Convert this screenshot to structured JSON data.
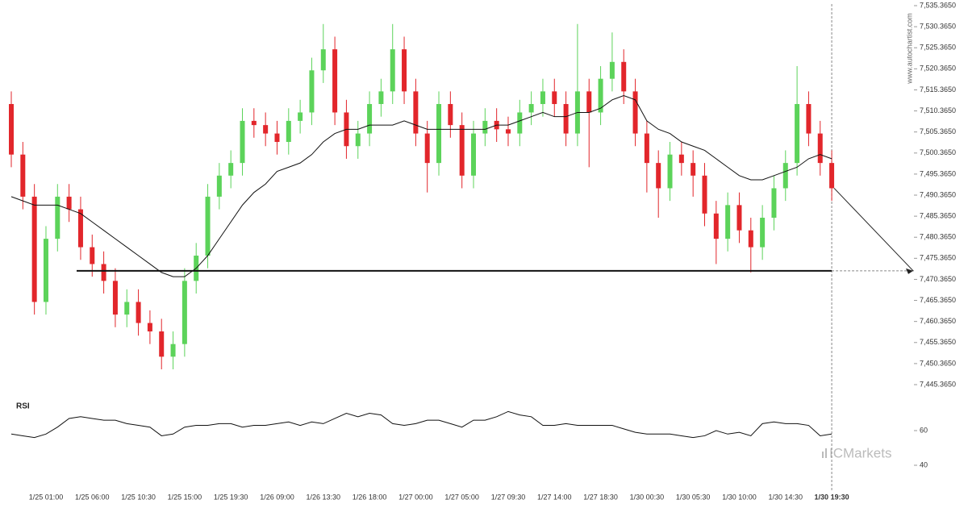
{
  "chart_data": {
    "type": "candlestick",
    "watermark": "www.autochartist.com",
    "logo": "ICMarkets",
    "up_color": "#5cd35a",
    "down_color": "#e2262b",
    "categories": [
      null,
      null,
      null,
      "1/25 01:00",
      null,
      null,
      null,
      "1/25 06:00",
      null,
      null,
      null,
      "1/25 10:30",
      null,
      null,
      null,
      "1/25 15:00",
      null,
      null,
      null,
      "1/25 19:30",
      null,
      null,
      null,
      "1/26 09:00",
      null,
      null,
      null,
      "1/26 13:30",
      null,
      null,
      null,
      "1/26 18:00",
      null,
      null,
      null,
      "1/27 00:00",
      null,
      null,
      null,
      "1/27 05:00",
      null,
      null,
      null,
      "1/27 09:30",
      null,
      null,
      null,
      "1/27 14:00",
      null,
      null,
      null,
      "1/27 18:30",
      null,
      null,
      null,
      "1/30 00:30",
      null,
      null,
      null,
      "1/30 05:30",
      null,
      null,
      null,
      "1/30 10:00",
      null,
      null,
      null,
      "1/30 14:30",
      null,
      null,
      null,
      "1/30 19:30"
    ],
    "open": [
      7512,
      7500,
      7490,
      7465,
      7480,
      7490,
      7487,
      7478,
      7474,
      7470,
      7462,
      7465,
      7460,
      7458,
      7452,
      7455,
      7470,
      7476,
      7490,
      7495,
      7498,
      7508,
      7507,
      7505,
      7503,
      7508,
      7510,
      7520,
      7525,
      7510,
      7502,
      7505,
      7512,
      7515,
      7525,
      7515,
      7505,
      7498,
      7512,
      7507,
      7495,
      7505,
      7508,
      7506,
      7505,
      7510,
      7512,
      7515,
      7512,
      7505,
      7515,
      7510,
      7518,
      7522,
      7515,
      7505,
      7498,
      7492,
      7500,
      7498,
      7495,
      7486,
      7480,
      7488,
      7482,
      7478,
      7485,
      7492,
      7498,
      7512,
      7505,
      7498
    ],
    "high": [
      7515,
      7503,
      7493,
      7483,
      7493,
      7493,
      7490,
      7481,
      7477,
      7473,
      7468,
      7468,
      7463,
      7461,
      7458,
      7473,
      7479,
      7493,
      7498,
      7501,
      7511,
      7511,
      7510,
      7508,
      7511,
      7513,
      7523,
      7531,
      7528,
      7513,
      7508,
      7515,
      7518,
      7531,
      7528,
      7518,
      7508,
      7515,
      7515,
      7510,
      7508,
      7511,
      7511,
      7509,
      7513,
      7515,
      7518,
      7518,
      7515,
      7531,
      7518,
      7521,
      7529,
      7525,
      7518,
      7508,
      7501,
      7503,
      7503,
      7501,
      7498,
      7489,
      7491,
      7491,
      7485,
      7488,
      7495,
      7501,
      7521,
      7515,
      7508,
      7501
    ],
    "low": [
      7497,
      7487,
      7462,
      7462,
      7477,
      7484,
      7475,
      7471,
      7467,
      7459,
      7459,
      7457,
      7455,
      7449,
      7449,
      7452,
      7467,
      7473,
      7487,
      7492,
      7495,
      7504,
      7502,
      7500,
      7500,
      7505,
      7507,
      7517,
      7507,
      7499,
      7499,
      7502,
      7509,
      7512,
      7512,
      7502,
      7491,
      7495,
      7504,
      7492,
      7492,
      7502,
      7503,
      7502,
      7502,
      7507,
      7509,
      7509,
      7502,
      7502,
      7497,
      7507,
      7515,
      7512,
      7502,
      7491,
      7485,
      7489,
      7495,
      7490,
      7483,
      7474,
      7477,
      7479,
      7472,
      7475,
      7482,
      7489,
      7495,
      7502,
      7495,
      7489
    ],
    "close": [
      7500,
      7490,
      7465,
      7480,
      7490,
      7487,
      7478,
      7474,
      7470,
      7462,
      7465,
      7460,
      7458,
      7452,
      7455,
      7470,
      7476,
      7490,
      7495,
      7498,
      7508,
      7507,
      7505,
      7503,
      7508,
      7510,
      7520,
      7525,
      7510,
      7502,
      7505,
      7512,
      7515,
      7525,
      7515,
      7505,
      7498,
      7512,
      7507,
      7495,
      7505,
      7508,
      7506,
      7505,
      7510,
      7512,
      7515,
      7512,
      7505,
      7515,
      7510,
      7518,
      7522,
      7515,
      7505,
      7498,
      7492,
      7500,
      7498,
      7495,
      7486,
      7480,
      7488,
      7482,
      7478,
      7485,
      7492,
      7498,
      7512,
      7505,
      7498,
      7492
    ],
    "ma": [
      7490,
      7489,
      7488,
      7488,
      7488,
      7487,
      7486,
      7484,
      7482,
      7480,
      7478,
      7476,
      7474,
      7472,
      7471,
      7471,
      7473,
      7476,
      7480,
      7484,
      7488,
      7491,
      7493,
      7496,
      7497,
      7498,
      7500,
      7503,
      7505,
      7506,
      7506,
      7507,
      7507,
      7507,
      7508,
      7507,
      7506,
      7506,
      7506,
      7506,
      7506,
      7506,
      7507,
      7507,
      7508,
      7509,
      7510,
      7509,
      7509,
      7510,
      7510,
      7511,
      7513,
      7514,
      7513,
      7508,
      7506,
      7505,
      7503,
      7502,
      7501,
      7499,
      7497,
      7495,
      7494,
      7494,
      7495,
      7496,
      7497,
      7499,
      7500,
      7499
    ],
    "support": 7472.4,
    "ylim": [
      7443.365,
      7536.365
    ],
    "yticks": [
      {
        "value": 7445.365,
        "label": "7,445.3650"
      },
      {
        "value": 7450.365,
        "label": "7,450.3650"
      },
      {
        "value": 7455.365,
        "label": "7,455.3650"
      },
      {
        "value": 7460.365,
        "label": "7,460.3650"
      },
      {
        "value": 7465.365,
        "label": "7,465.3650"
      },
      {
        "value": 7470.365,
        "label": "7,470.3650"
      },
      {
        "value": 7475.365,
        "label": "7,475.3650"
      },
      {
        "value": 7480.365,
        "label": "7,480.3650"
      },
      {
        "value": 7485.365,
        "label": "7,485.3650"
      },
      {
        "value": 7490.365,
        "label": "7,490.3650"
      },
      {
        "value": 7495.365,
        "label": "7,495.3650"
      },
      {
        "value": 7500.365,
        "label": "7,500.3650"
      },
      {
        "value": 7505.365,
        "label": "7,505.3650"
      },
      {
        "value": 7510.365,
        "label": "7,510.3650"
      },
      {
        "value": 7515.365,
        "label": "7,515.3650"
      },
      {
        "value": 7520.365,
        "label": "7,520.3650"
      },
      {
        "value": 7525.365,
        "label": "7,525.3650"
      },
      {
        "value": 7530.365,
        "label": "7,530.3650"
      },
      {
        "value": 7535.365,
        "label": "7,535.3650"
      }
    ],
    "rsi": {
      "title": "RSI",
      "ylim": [
        35,
        85
      ],
      "yticks": [
        40,
        60
      ],
      "values": [
        58,
        57,
        56,
        58,
        62,
        67,
        68,
        67,
        66,
        66,
        64,
        63,
        62,
        57,
        58,
        62,
        63,
        63,
        64,
        64,
        62,
        63,
        63,
        64,
        65,
        63,
        65,
        64,
        67,
        70,
        68,
        70,
        69,
        64,
        63,
        64,
        66,
        66,
        64,
        62,
        66,
        66,
        68,
        71,
        69,
        68,
        63,
        63,
        64,
        63,
        63,
        63,
        63,
        61,
        59,
        58,
        58,
        58,
        57,
        56,
        57,
        60,
        58,
        59,
        57,
        64,
        65,
        64,
        64,
        63,
        57,
        58
      ]
    }
  }
}
